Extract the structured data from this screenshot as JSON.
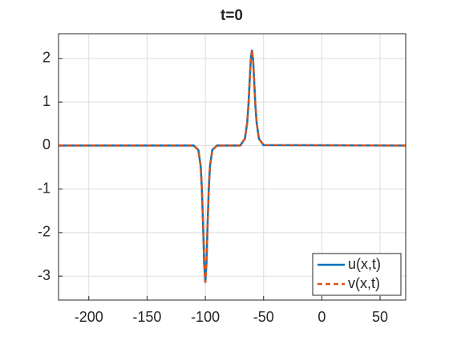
{
  "chart_data": {
    "type": "line",
    "title": "t=0",
    "x": [
      -226,
      -110,
      -106,
      -104,
      -103,
      -102,
      -101,
      -100,
      -99,
      -98,
      -97,
      -96,
      -94,
      -90,
      -70,
      -66,
      -64,
      -63,
      -62,
      -61,
      -60,
      -59,
      -58,
      -57,
      -56,
      -54,
      -50,
      72
    ],
    "series": [
      {
        "name": "u(x,t)",
        "color": "#0072BD",
        "dash": false,
        "values": [
          0,
          0,
          -0.1,
          -0.47,
          -0.96,
          -1.76,
          -2.7,
          -3.15,
          -2.7,
          -1.76,
          -0.96,
          -0.47,
          -0.1,
          0,
          0,
          0.16,
          0.54,
          0.92,
          1.45,
          1.97,
          2.2,
          1.97,
          1.45,
          0.92,
          0.54,
          0.16,
          0.01,
          0
        ]
      },
      {
        "name": "v(x,t)",
        "color": "#D95319",
        "dash": true,
        "values": [
          0,
          0,
          -0.1,
          -0.47,
          -0.96,
          -1.76,
          -2.7,
          -3.15,
          -2.7,
          -1.76,
          -0.96,
          -0.47,
          -0.1,
          0,
          0,
          0.16,
          0.54,
          0.92,
          1.45,
          1.97,
          2.2,
          1.97,
          1.45,
          0.92,
          0.54,
          0.16,
          0.01,
          0
        ]
      }
    ],
    "xlim": [
      -226,
      72
    ],
    "xticks": [
      -200,
      -150,
      -100,
      -50,
      0,
      50
    ],
    "ylim": [
      -3.55,
      2.57
    ],
    "yticks": [
      -3,
      -2,
      -1,
      0,
      1,
      2
    ],
    "grid": true,
    "legend": "southeast"
  }
}
